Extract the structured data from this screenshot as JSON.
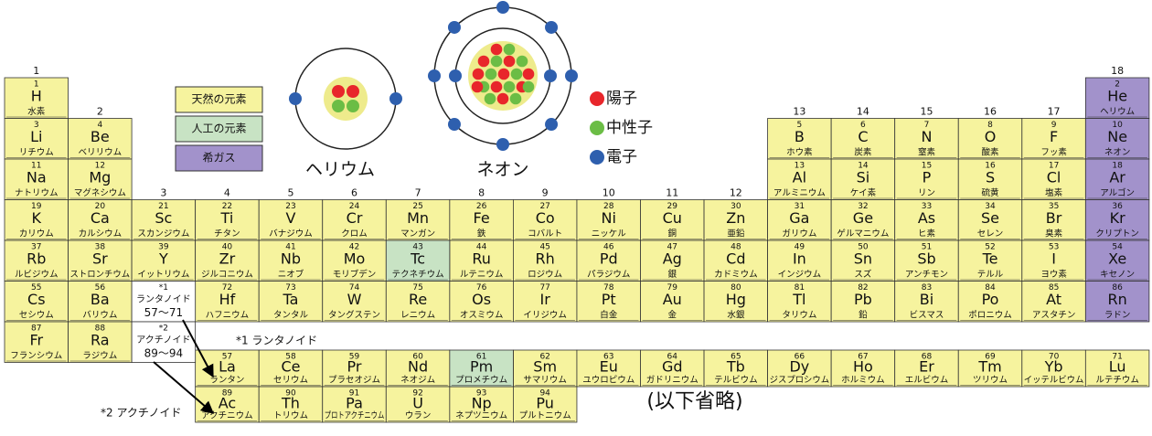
{
  "groups": [
    1,
    2,
    3,
    4,
    5,
    6,
    7,
    8,
    9,
    10,
    11,
    12,
    13,
    14,
    15,
    16,
    17,
    18
  ],
  "legend": [
    {
      "label": "天然の元素",
      "color": "#f6f39e",
      "elements": [
        {
          "number": 1,
          "symbol": "H",
          "name": "水素"
        },
        {
          "number": 3,
          "symbol": "Li",
          "name": "リチウム"
        },
        {
          "number": 4,
          "symbol": "Be",
          "name": "ベリリウム"
        },
        {
          "number": 5,
          "symbol": "B",
          "name": "ホウ素"
        },
        {
          "number": 6,
          "symbol": "C",
          "name": "炭素"
        },
        {
          "number": 7,
          "symbol": "N",
          "name": "窒素"
        },
        {
          "number": 8,
          "symbol": "O",
          "name": "酸素"
        },
        {
          "number": 9,
          "symbol": "F",
          "name": "フッ素"
        },
        {
          "number": 11,
          "symbol": "Na",
          "name": "ナトリウム"
        },
        {
          "number": 12,
          "symbol": "Mg",
          "name": "マグネシウム"
        },
        {
          "number": 13,
          "symbol": "Al",
          "name": "アルミニウム"
        },
        {
          "number": 14,
          "symbol": "Si",
          "name": "ケイ素"
        },
        {
          "number": 15,
          "symbol": "P",
          "name": "リン"
        },
        {
          "number": 16,
          "symbol": "S",
          "name": "硫黄"
        },
        {
          "number": 17,
          "symbol": "Cl",
          "name": "塩素"
        },
        {
          "number": 19,
          "symbol": "K",
          "name": "カリウム"
        },
        {
          "number": 20,
          "symbol": "Ca",
          "name": "カルシウム"
        },
        {
          "number": 21,
          "symbol": "Sc",
          "name": "スカンジウム"
        },
        {
          "number": 22,
          "symbol": "Ti",
          "name": "チタン"
        },
        {
          "number": 23,
          "symbol": "V",
          "name": "バナジウム"
        },
        {
          "number": 24,
          "symbol": "Cr",
          "name": "クロム"
        },
        {
          "number": 25,
          "symbol": "Mn",
          "name": "マンガン"
        },
        {
          "number": 26,
          "symbol": "Fe",
          "name": "鉄"
        },
        {
          "number": 27,
          "symbol": "Co",
          "name": "コバルト"
        },
        {
          "number": 28,
          "symbol": "Ni",
          "name": "ニッケル"
        },
        {
          "number": 29,
          "symbol": "Cu",
          "name": "銅"
        },
        {
          "number": 30,
          "symbol": "Zn",
          "name": "亜鉛"
        },
        {
          "number": 31,
          "symbol": "Ga",
          "name": "ガリウム"
        },
        {
          "number": 32,
          "symbol": "Ge",
          "name": "ゲルマニウム"
        },
        {
          "number": 33,
          "symbol": "As",
          "name": "ヒ素"
        },
        {
          "number": 34,
          "symbol": "Se",
          "name": "セレン"
        },
        {
          "number": 35,
          "symbol": "Br",
          "name": "臭素"
        },
        {
          "number": 37,
          "symbol": "Rb",
          "name": "ルビジウム"
        },
        {
          "number": 38,
          "symbol": "Sr",
          "name": "ストロンチウム"
        },
        {
          "number": 39,
          "symbol": "Y",
          "name": "イットリウム"
        },
        {
          "number": 40,
          "symbol": "Zr",
          "name": "ジルコニウム"
        },
        {
          "number": 41,
          "symbol": "Nb",
          "name": "ニオブ"
        },
        {
          "number": 42,
          "symbol": "Mo",
          "name": "モリブデン"
        },
        {
          "number": 44,
          "symbol": "Ru",
          "name": "ルテニウム"
        },
        {
          "number": 45,
          "symbol": "Rh",
          "name": "ロジウム"
        },
        {
          "number": 46,
          "symbol": "Pd",
          "name": "パラジウム"
        },
        {
          "number": 47,
          "symbol": "Ag",
          "name": "銀"
        },
        {
          "number": 48,
          "symbol": "Cd",
          "name": "カドミウム"
        },
        {
          "number": 49,
          "symbol": "In",
          "name": "インジウム"
        },
        {
          "number": 50,
          "symbol": "Sn",
          "name": "スズ"
        },
        {
          "number": 51,
          "symbol": "Sb",
          "name": "アンチモン"
        },
        {
          "number": 52,
          "symbol": "Te",
          "name": "テルル"
        },
        {
          "number": 53,
          "symbol": "I",
          "name": "ヨウ素"
        },
        {
          "number": 55,
          "symbol": "Cs",
          "name": "セシウム"
        },
        {
          "number": 56,
          "symbol": "Ba",
          "name": "バリウム"
        },
        {
          "number": 72,
          "symbol": "Hf",
          "name": "ハフニウム"
        },
        {
          "number": 73,
          "symbol": "Ta",
          "name": "タンタル"
        },
        {
          "number": 74,
          "symbol": "W",
          "name": "タングステン"
        },
        {
          "number": 75,
          "symbol": "Re",
          "name": "レニウム"
        },
        {
          "number": 76,
          "symbol": "Os",
          "name": "オスミウム"
        },
        {
          "number": 77,
          "symbol": "Ir",
          "name": "イリジウム"
        },
        {
          "number": 78,
          "symbol": "Pt",
          "name": "白金"
        },
        {
          "number": 79,
          "symbol": "Au",
          "name": "金"
        },
        {
          "number": 80,
          "symbol": "Hg",
          "name": "水銀"
        },
        {
          "number": 81,
          "symbol": "Tl",
          "name": "タリウム"
        },
        {
          "number": 82,
          "symbol": "Pb",
          "name": "鉛"
        },
        {
          "number": 83,
          "symbol": "Bi",
          "name": "ビスマス"
        },
        {
          "number": 84,
          "symbol": "Po",
          "name": "ポロニウム"
        },
        {
          "number": 85,
          "symbol": "At",
          "name": "アスタチン"
        },
        {
          "number": 87,
          "symbol": "Fr",
          "name": "フランシウム"
        },
        {
          "number": 88,
          "symbol": "Ra",
          "name": "ラジウム"
        },
        {
          "number": 57,
          "symbol": "La",
          "name": "ランタン"
        },
        {
          "number": 58,
          "symbol": "Ce",
          "name": "セリウム"
        },
        {
          "number": 59,
          "symbol": "Pr",
          "name": "プラセオジム"
        },
        {
          "number": 60,
          "symbol": "Nd",
          "name": "ネオジム"
        },
        {
          "number": 62,
          "symbol": "Sm",
          "name": "サマリウム"
        },
        {
          "number": 63,
          "symbol": "Eu",
          "name": "ユウロピウム"
        },
        {
          "number": 64,
          "symbol": "Gd",
          "name": "ガドリニウム"
        },
        {
          "number": 65,
          "symbol": "Tb",
          "name": "テルビウム"
        },
        {
          "number": 66,
          "symbol": "Dy",
          "name": "ジスプロシウム"
        },
        {
          "number": 67,
          "symbol": "Ho",
          "name": "ホルミウム"
        },
        {
          "number": 68,
          "symbol": "Er",
          "name": "エルビウム"
        },
        {
          "number": 69,
          "symbol": "Tm",
          "name": "ツリウム"
        },
        {
          "number": 70,
          "symbol": "Yb",
          "name": "イッテルビウム"
        },
        {
          "number": 71,
          "symbol": "Lu",
          "name": "ルテチウム"
        },
        {
          "number": 89,
          "symbol": "Ac",
          "name": "アクチニウム"
        },
        {
          "number": 90,
          "symbol": "Th",
          "name": "トリウム"
        },
        {
          "number": 91,
          "symbol": "Pa",
          "name": "プロトアクチニウム"
        },
        {
          "number": 92,
          "symbol": "U",
          "name": "ウラン"
        },
        {
          "number": 93,
          "symbol": "Np",
          "name": "ネプツニウム"
        },
        {
          "number": 94,
          "symbol": "Pu",
          "name": "プルトニウム"
        }
      ]
    },
    {
      "label": "人工の元素",
      "color": "#c8e3c4",
      "elements": [
        {
          "number": 43,
          "symbol": "Tc",
          "name": "テクネチウム"
        },
        {
          "number": 61,
          "symbol": "Pm",
          "name": "プロメチウム"
        }
      ]
    },
    {
      "label": "希ガス",
      "color": "#a292cb",
      "elements": [
        {
          "number": 2,
          "symbol": "He",
          "name": "ヘリウム"
        },
        {
          "number": 10,
          "symbol": "Ne",
          "name": "ネオン"
        },
        {
          "number": 18,
          "symbol": "Ar",
          "name": "アルゴン"
        },
        {
          "number": 36,
          "symbol": "Kr",
          "name": "クリプトン"
        },
        {
          "number": 54,
          "symbol": "Xe",
          "name": "キセノン"
        },
        {
          "number": 86,
          "symbol": "Rn",
          "name": "ラドン"
        }
      ]
    }
  ],
  "lanthanoid": {
    "mark": "*1",
    "name": "ランタノイド",
    "range": "57〜71",
    "caption": "*1 ランタノイド"
  },
  "actinoid": {
    "mark": "*2",
    "name": "アクチノイド",
    "range": "89〜94",
    "caption": "*2 アクチノイド"
  },
  "atoms": {
    "helium": "ヘリウム",
    "neon": "ネオン"
  },
  "particles": [
    {
      "label": "陽子",
      "color": "#e8262b"
    },
    {
      "label": "中性子",
      "color": "#6bbd45"
    },
    {
      "label": "電子",
      "color": "#2e5fae"
    }
  ],
  "omitted": "(以下省略)"
}
